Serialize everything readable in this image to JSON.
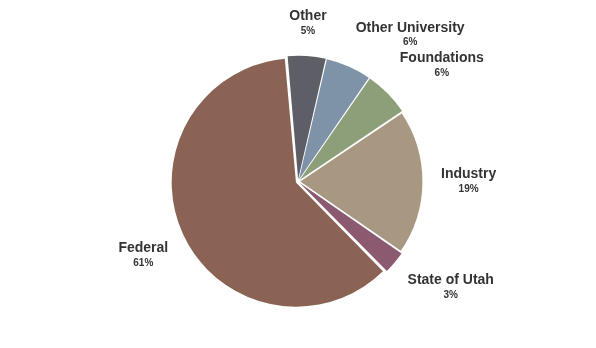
{
  "chart_data": {
    "type": "pie",
    "categories": [
      "Other",
      "Other University",
      "Foundations",
      "Industry",
      "State of Utah",
      "Federal"
    ],
    "values": [
      5,
      6,
      6,
      19,
      3,
      61
    ],
    "value_labels": [
      "5%",
      "6%",
      "6%",
      "19%",
      "3%",
      "61%"
    ],
    "colors": [
      "#5e5e66",
      "#7f93a8",
      "#8c9f78",
      "#a89882",
      "#8c5a70",
      "#8a6355"
    ],
    "data_labels": true
  }
}
